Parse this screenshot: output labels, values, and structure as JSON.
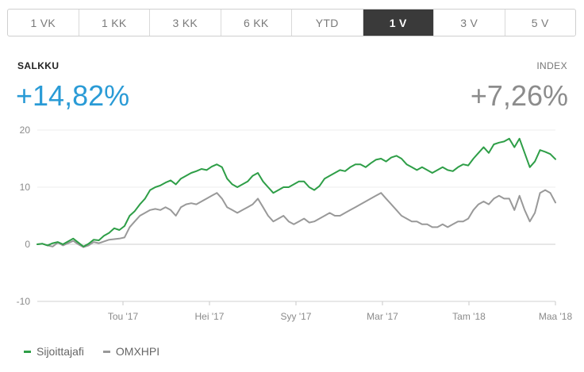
{
  "tabs": [
    {
      "label": "1 VK",
      "active": false
    },
    {
      "label": "1 KK",
      "active": false
    },
    {
      "label": "3 KK",
      "active": false
    },
    {
      "label": "6 KK",
      "active": false
    },
    {
      "label": "YTD",
      "active": false
    },
    {
      "label": "1 V",
      "active": true
    },
    {
      "label": "3 V",
      "active": false
    },
    {
      "label": "5 V",
      "active": false
    }
  ],
  "portfolio": {
    "label": "SALKKU",
    "value": "+14,82%"
  },
  "index": {
    "label": "INDEX",
    "value": "+7,26%"
  },
  "colors": {
    "green": "#2e9e47",
    "gray": "#999999",
    "accent": "#2a9bd6"
  },
  "legend": [
    {
      "label": "Sijoittajafi",
      "color": "#2e9e47"
    },
    {
      "label": "OMXHPI",
      "color": "#999999"
    }
  ],
  "chart_data": {
    "type": "line",
    "ylim": [
      -10,
      20
    ],
    "y_ticks": [
      -10,
      0,
      10,
      20
    ],
    "x_ticks": [
      "Tou '17",
      "Hei '17",
      "Syy '17",
      "Mar '17",
      "Tam '18",
      "Maa '18"
    ],
    "grid": true,
    "series": [
      {
        "name": "Sijoittajafi",
        "color": "#2e9e47",
        "values": [
          0,
          0.1,
          -0.2,
          0.2,
          0.4,
          0.0,
          0.5,
          1.0,
          0.3,
          -0.4,
          0.1,
          0.8,
          0.7,
          1.5,
          2.0,
          2.8,
          2.5,
          3.2,
          5.0,
          5.8,
          7.0,
          8.0,
          9.5,
          10.0,
          10.3,
          10.8,
          11.2,
          10.5,
          11.5,
          12.0,
          12.5,
          12.8,
          13.2,
          13.0,
          13.6,
          14.0,
          13.5,
          11.5,
          10.5,
          10.0,
          10.5,
          11.0,
          12.0,
          12.5,
          11.0,
          10.0,
          9.0,
          9.5,
          10.0,
          10.0,
          10.5,
          11.0,
          11.0,
          10.0,
          9.5,
          10.2,
          11.5,
          12.0,
          12.5,
          13.0,
          12.8,
          13.5,
          14.0,
          14.0,
          13.5,
          14.2,
          14.8,
          15.0,
          14.5,
          15.2,
          15.5,
          15.0,
          14.0,
          13.5,
          13.0,
          13.5,
          13.0,
          12.5,
          13.0,
          13.5,
          13.0,
          12.8,
          13.5,
          14.0,
          13.8,
          15.0,
          16.0,
          17.0,
          16.0,
          17.5,
          17.8,
          18.0,
          18.5,
          17.0,
          18.5,
          16.0,
          13.5,
          14.5,
          16.5,
          16.2,
          15.8,
          14.9
        ]
      },
      {
        "name": "OMXHPI",
        "color": "#999999",
        "values": [
          0,
          0.1,
          -0.2,
          -0.4,
          0.3,
          -0.2,
          0.2,
          0.6,
          0.0,
          -0.5,
          -0.2,
          0.4,
          0.2,
          0.5,
          0.8,
          0.9,
          1.0,
          1.2,
          3.0,
          4.0,
          5.0,
          5.5,
          6.0,
          6.2,
          6.0,
          6.5,
          6.0,
          5.0,
          6.5,
          7.0,
          7.2,
          7.0,
          7.5,
          8.0,
          8.5,
          9.0,
          8.0,
          6.5,
          6.0,
          5.5,
          6.0,
          6.5,
          7.0,
          8.0,
          6.5,
          5.0,
          4.0,
          4.5,
          5.0,
          4.0,
          3.5,
          4.0,
          4.5,
          3.8,
          4.0,
          4.5,
          5.0,
          5.5,
          5.0,
          5.0,
          5.5,
          6.0,
          6.5,
          7.0,
          7.5,
          8.0,
          8.5,
          9.0,
          8.0,
          7.0,
          6.0,
          5.0,
          4.5,
          4.0,
          4.0,
          3.5,
          3.5,
          3.0,
          3.0,
          3.5,
          3.0,
          3.5,
          4.0,
          4.0,
          4.5,
          6.0,
          7.0,
          7.5,
          7.0,
          8.0,
          8.5,
          8.0,
          8.0,
          6.0,
          8.5,
          6.0,
          4.0,
          5.5,
          9.0,
          9.5,
          9.0,
          7.3
        ]
      }
    ]
  }
}
